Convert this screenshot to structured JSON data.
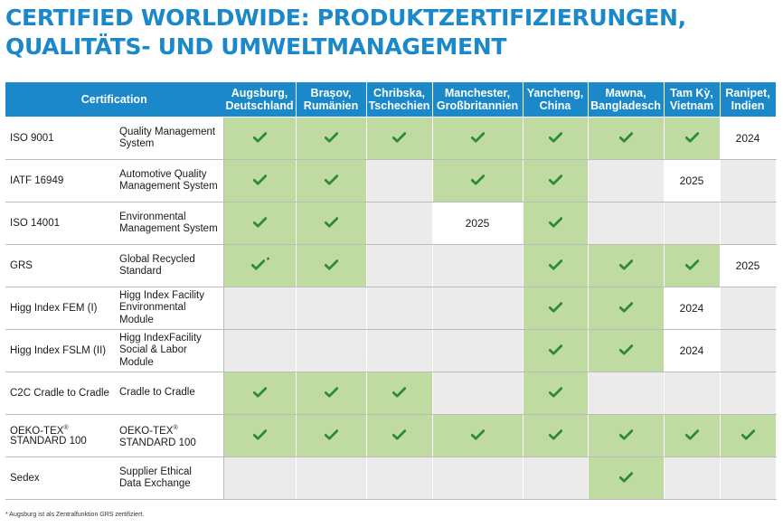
{
  "title": {
    "line1": "CERTIFIED WORLDWIDE: PRODUKTZERTIFIZIERUNGEN,",
    "line2": "QUALITÄTS- UND UMWELTMANAGEMENT"
  },
  "table": {
    "cert_header": "Certification",
    "locations": [
      {
        "l1": "Augsburg,",
        "l2": "Deutschland"
      },
      {
        "l1": "Brașov,",
        "l2": "Rumänien"
      },
      {
        "l1": "Chribska,",
        "l2": "Tschechien"
      },
      {
        "l1": "Manchester,",
        "l2": "Großbritannien"
      },
      {
        "l1": "Yancheng,",
        "l2": "China"
      },
      {
        "l1": "Mawna,",
        "l2": "Bangladesch"
      },
      {
        "l1": "Tam Kỳ,",
        "l2": "Vietnam"
      },
      {
        "l1": "Ranipet,",
        "l2": "Indien"
      }
    ],
    "rows": [
      {
        "code": "ISO 9001",
        "desc": [
          "Quality Management",
          "System"
        ]
      },
      {
        "code": "IATF 16949",
        "desc": [
          "Automotive Quality",
          "Management System"
        ]
      },
      {
        "code": "ISO 14001",
        "desc": [
          "Environmental",
          "Management System"
        ]
      },
      {
        "code": "GRS",
        "desc": [
          "Global Recycled",
          "Standard"
        ]
      },
      {
        "code": "Higg Index FEM (I)",
        "desc": [
          "Higg Index Facility",
          "Environmental",
          "Module"
        ]
      },
      {
        "code": "Higg Index FSLM (II)",
        "desc": [
          "Higg IndexFacility",
          "Social & Labor",
          "Module"
        ]
      },
      {
        "code": "C2C Cradle to Cradle",
        "desc": [
          "Cradle to Cradle"
        ]
      },
      {
        "code": [
          "OEKO-TEX",
          "®",
          "STANDARD 100"
        ],
        "desc": [
          "OEKO-TEX",
          "®",
          "STANDARD 100"
        ]
      },
      {
        "code": "Sedex",
        "desc": [
          "Supplier Ethical",
          "Data Exchange"
        ]
      }
    ],
    "years": {
      "y2024": "2024",
      "y2025": "2025"
    },
    "asterisk": "*"
  },
  "footnote": "* Augsburg ist als Zentralfunktion GRS zertifiziert.",
  "colors": {
    "accent": "#1b88c9",
    "certified_cell": "#c0dba1",
    "check": "#2d8a3a",
    "empty_cell": "#ebebeb"
  },
  "icons": {
    "certified": "check-icon"
  }
}
